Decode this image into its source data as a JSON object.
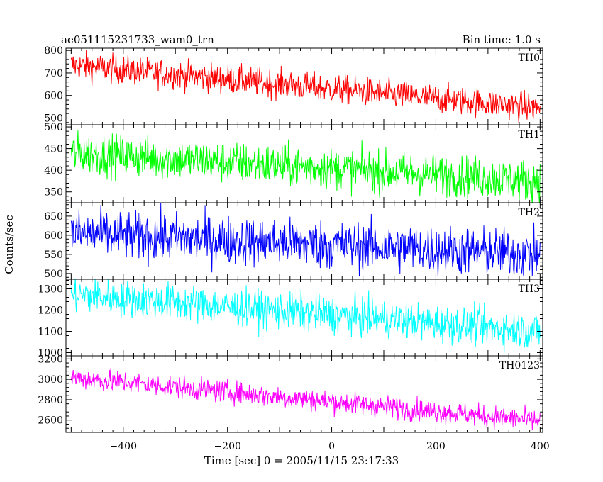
{
  "chart_data": {
    "type": "line",
    "title_left": "ae051115231733_wam0_trn",
    "title_right": "Bin time: 1.0 s",
    "xlabel": "Time [sec] 0 = 2005/11/15 23:17:33",
    "ylabel": "Counts/sec",
    "xlim": [
      -510,
      405
    ],
    "x_range": [
      -500,
      400
    ],
    "x_ticks": [
      -400,
      -200,
      0,
      200,
      400
    ],
    "panels": [
      {
        "name": "TH0",
        "color": "#ff0000",
        "ylim": [
          470,
          810
        ],
        "y_ticks": [
          500,
          600,
          700,
          800
        ],
        "trend_start": 735,
        "trend_end": 545,
        "noise": 32
      },
      {
        "name": "TH1",
        "color": "#00ff00",
        "ylim": [
          325,
          505
        ],
        "y_ticks": [
          350,
          400,
          450,
          500
        ],
        "trend_start": 440,
        "trend_end": 375,
        "noise": 24
      },
      {
        "name": "TH2",
        "color": "#0000ff",
        "ylim": [
          485,
          685
        ],
        "y_ticks": [
          500,
          550,
          600,
          650
        ],
        "trend_start": 605,
        "trend_end": 550,
        "noise": 32
      },
      {
        "name": "TH3",
        "color": "#00ffff",
        "ylim": [
          985,
          1345
        ],
        "y_ticks": [
          1000,
          1100,
          1200,
          1300
        ],
        "trend_start": 1275,
        "trend_end": 1100,
        "noise": 44
      },
      {
        "name": "TH0123",
        "color": "#ff00ff",
        "ylim": [
          2480,
          3230
        ],
        "y_ticks": [
          2600,
          2800,
          3000,
          3200
        ],
        "trend_start": 3020,
        "trend_end": 2590,
        "noise": 55
      }
    ]
  }
}
